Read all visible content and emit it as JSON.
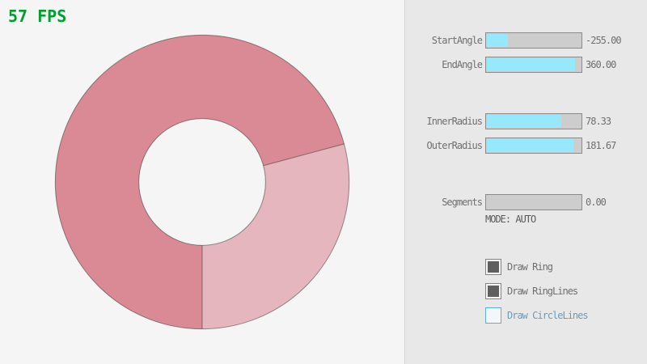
{
  "fps": {
    "text": "57 FPS",
    "color": "#009e2f"
  },
  "ring": {
    "start_angle": -255.0,
    "end_angle": 360.0,
    "inner_radius": 78.33,
    "outer_radius": 181.67,
    "color_overlap": "#d98a94",
    "color_single": "#e5b6bd",
    "line_color": "rgba(0,0,0,0.4)"
  },
  "panel": {
    "sliders": [
      {
        "label": "StartAngle",
        "value": "-255.00",
        "fill_pct": 21.7
      },
      {
        "label": "EndAngle",
        "value": "360.00",
        "fill_pct": 92
      },
      {
        "label": "InnerRadius",
        "value": "78.33",
        "fill_pct": 78.3
      },
      {
        "label": "OuterRadius",
        "value": "181.67",
        "fill_pct": 91
      },
      {
        "label": "Segments",
        "value": "0.00",
        "fill_pct": 0
      }
    ],
    "mode_text": "MODE: AUTO",
    "checkboxes": [
      {
        "label": "Draw Ring",
        "checked": true,
        "focused": false
      },
      {
        "label": "Draw RingLines",
        "checked": true,
        "focused": false
      },
      {
        "label": "Draw CircleLines",
        "checked": false,
        "focused": true
      }
    ],
    "accent_color": "#97e8ff",
    "focus_border_color": "#5bb2d9",
    "focus_text_color": "#6c9bbc"
  }
}
